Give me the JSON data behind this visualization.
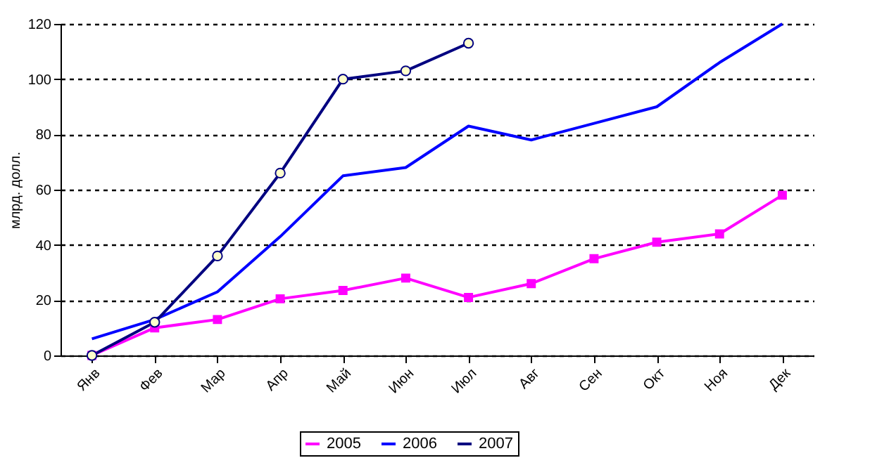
{
  "chart_data": {
    "type": "line",
    "ylabel": "млрд. долл.",
    "categories": [
      "Янв",
      "Фев",
      "Мар",
      "Апр",
      "Май",
      "Июн",
      "Июл",
      "Авг",
      "Сен",
      "Окт",
      "Ноя",
      "Дек"
    ],
    "series": [
      {
        "name": "2005",
        "color": "#ff00ff",
        "marker": "square",
        "values": [
          0,
          10,
          13,
          20.5,
          23.5,
          28,
          21,
          26,
          35,
          41,
          44,
          58
        ]
      },
      {
        "name": "2006",
        "color": "#0000ff",
        "marker": "none",
        "values": [
          6,
          13,
          23,
          43,
          65,
          68,
          83,
          78,
          84,
          90,
          106,
          120
        ]
      },
      {
        "name": "2007",
        "color": "#000080",
        "marker": "circle",
        "values": [
          0,
          12,
          36,
          66,
          100,
          103,
          113,
          null,
          null,
          null,
          null,
          null
        ]
      }
    ],
    "ylim": [
      0,
      120
    ],
    "yticks": [
      0,
      20,
      40,
      60,
      80,
      100,
      120
    ],
    "grid": "y",
    "legend": "bottom",
    "line_style": "solid"
  }
}
